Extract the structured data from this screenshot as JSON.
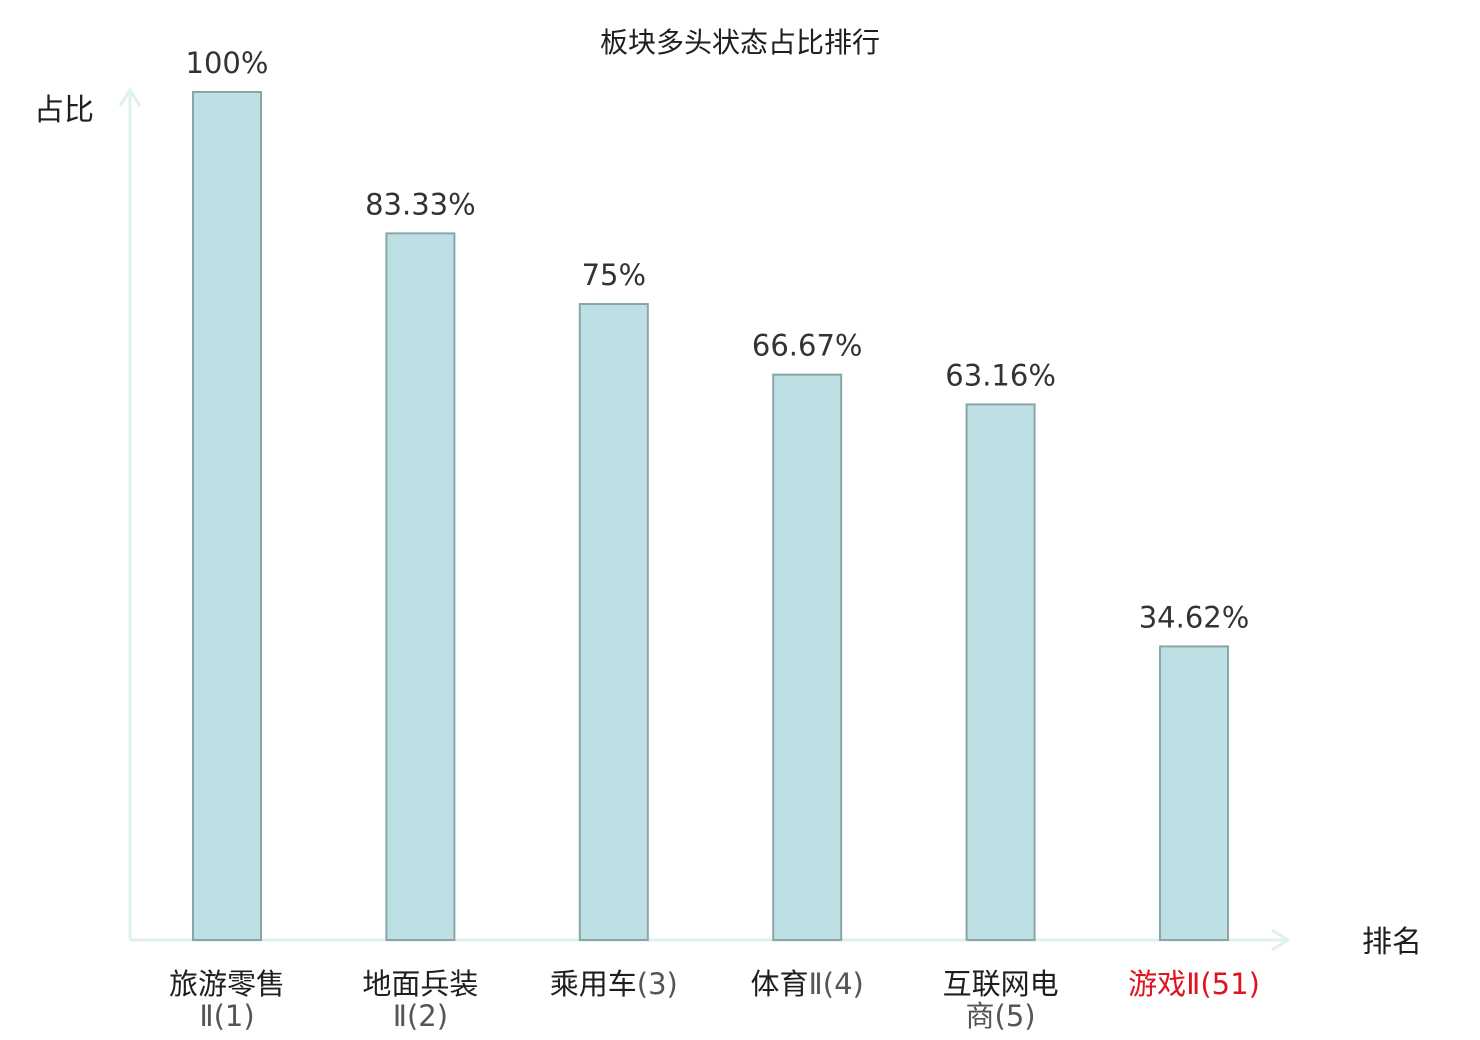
{
  "chart_data": {
    "type": "bar",
    "title": "板块多头状态占比排行",
    "ylabel": "占比",
    "xlabel": "排名",
    "ylim": [
      0,
      100
    ],
    "grid": false,
    "legend": "none",
    "categories": [
      {
        "name": "旅游零售",
        "suffix": "Ⅱ(1)",
        "highlight": false
      },
      {
        "name": "地面兵装",
        "suffix": "Ⅱ(2)",
        "highlight": false
      },
      {
        "name": "乘用车",
        "suffix": "(3)",
        "highlight": false
      },
      {
        "name": "体育",
        "suffix": "Ⅱ(4)",
        "highlight": false
      },
      {
        "name": "互联网电",
        "suffix": "商(5)",
        "highlight": false
      },
      {
        "name": "游戏",
        "suffix": "Ⅱ(51)",
        "highlight": true
      }
    ],
    "values": [
      100,
      83.33,
      75,
      66.67,
      63.16,
      34.62
    ],
    "value_labels": [
      "100%",
      "83.33%",
      "75%",
      "66.67%",
      "63.16%",
      "34.62%"
    ],
    "colors": {
      "bar_fill": "#bce0e3",
      "bar_stroke": "#8aa5a7",
      "axis": "#dff1ef",
      "highlight_text": "#e0141e",
      "normal_text": "#1f1f1f"
    }
  }
}
